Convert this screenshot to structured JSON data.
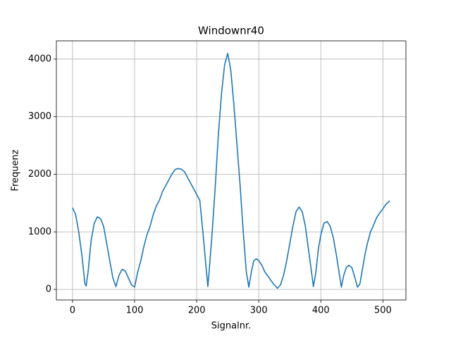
{
  "chart_data": {
    "type": "line",
    "title": "Windownr40",
    "x_label": "Signalnr.",
    "y_label": "Frequenz",
    "x": [
      0,
      5,
      10,
      15,
      20,
      22,
      25,
      30,
      35,
      40,
      45,
      50,
      55,
      60,
      65,
      70,
      75,
      80,
      85,
      90,
      95,
      100,
      105,
      110,
      115,
      120,
      125,
      130,
      135,
      140,
      145,
      150,
      155,
      160,
      165,
      170,
      175,
      180,
      185,
      190,
      195,
      200,
      205,
      210,
      215,
      218,
      220,
      225,
      230,
      235,
      240,
      245,
      250,
      255,
      260,
      265,
      270,
      275,
      280,
      284,
      288,
      292,
      296,
      300,
      305,
      310,
      315,
      320,
      325,
      330,
      335,
      340,
      345,
      350,
      355,
      360,
      365,
      370,
      375,
      380,
      385,
      388,
      392,
      396,
      400,
      405,
      410,
      415,
      420,
      425,
      430,
      433,
      437,
      441,
      445,
      450,
      455,
      459,
      463,
      467,
      471,
      475,
      480,
      485,
      490,
      495,
      500,
      505,
      511
    ],
    "series": [
      {
        "name": "Frequenz",
        "color": "#1f77b4",
        "values": [
          1420,
          1300,
          1000,
          600,
          100,
          60,
          300,
          850,
          1150,
          1260,
          1230,
          1100,
          800,
          500,
          200,
          50,
          250,
          350,
          320,
          200,
          80,
          40,
          300,
          500,
          750,
          950,
          1100,
          1300,
          1450,
          1550,
          1700,
          1800,
          1900,
          2000,
          2080,
          2100,
          2090,
          2050,
          1950,
          1850,
          1750,
          1650,
          1550,
          1000,
          400,
          50,
          300,
          1000,
          1800,
          2700,
          3400,
          3900,
          4100,
          3800,
          3200,
          2500,
          1800,
          1000,
          300,
          40,
          300,
          500,
          530,
          500,
          420,
          300,
          230,
          150,
          80,
          20,
          80,
          250,
          500,
          800,
          1100,
          1350,
          1430,
          1350,
          1100,
          700,
          300,
          50,
          300,
          700,
          950,
          1150,
          1180,
          1100,
          900,
          600,
          250,
          40,
          250,
          380,
          420,
          380,
          200,
          40,
          100,
          350,
          600,
          800,
          1000,
          1120,
          1250,
          1330,
          1400,
          1480,
          1540
        ]
      }
    ],
    "xlim": [
      -26,
      537
    ],
    "ylim": [
      -183,
      4317
    ],
    "xticks": [
      0,
      100,
      200,
      300,
      400,
      500
    ],
    "yticks": [
      0,
      1000,
      2000,
      3000,
      4000
    ],
    "grid": true
  }
}
